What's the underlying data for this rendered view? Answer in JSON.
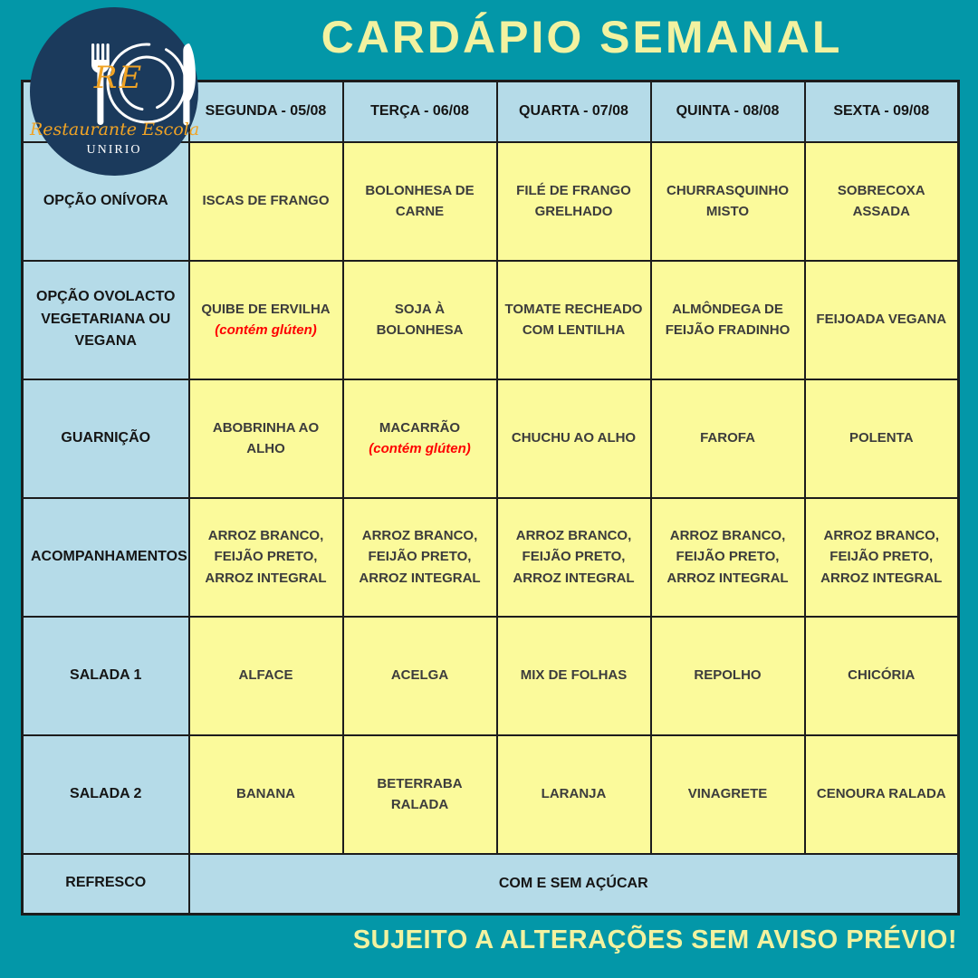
{
  "title": "CARDÁPIO SEMANAL",
  "footer_note": "SUJEITO A ALTERAÇÕES SEM AVISO PRÉVIO!",
  "logo": {
    "monogram": "RE",
    "name": "Restaurante Escola",
    "institution": "UNIRIO"
  },
  "colors": {
    "background_teal": "#0397a8",
    "header_cell_blue": "#b5dbe8",
    "dish_cell_yellow": "#fbfa9b",
    "accent_pale_yellow": "#f2f2a0",
    "logo_navy": "#1b3a5c",
    "logo_orange": "#f0a325",
    "allergen_red": "#fe0000",
    "grid_border": "#1c1c1c"
  },
  "table": {
    "column_headers": [
      "SEGUNDA - 05/08",
      "TERÇA - 06/08",
      "QUARTA - 07/08",
      "QUINTA - 08/08",
      "SEXTA - 09/08"
    ],
    "rows": [
      {
        "label": "OPÇÃO ONÍVORA",
        "cells": [
          {
            "text": "ISCAS DE FRANGO"
          },
          {
            "text": "BOLONHESA DE CARNE"
          },
          {
            "text": "FILÉ DE FRANGO GRELHADO"
          },
          {
            "text": "CHURRASQUINHO MISTO"
          },
          {
            "text": "SOBRECOXA ASSADA"
          }
        ]
      },
      {
        "label": "OPÇÃO OVOLACTO VEGETARIANA OU VEGANA",
        "cells": [
          {
            "text": "QUIBE DE ERVILHA",
            "note": "(contém glúten)"
          },
          {
            "text": "SOJA À BOLONHESA"
          },
          {
            "text": "TOMATE RECHEADO COM LENTILHA"
          },
          {
            "text": "ALMÔNDEGA DE FEIJÃO FRADINHO"
          },
          {
            "text": "FEIJOADA VEGANA"
          }
        ]
      },
      {
        "label": "GUARNIÇÃO",
        "cells": [
          {
            "text": "ABOBRINHA AO ALHO"
          },
          {
            "text": "MACARRÃO",
            "note": "(contém glúten)"
          },
          {
            "text": "CHUCHU AO ALHO"
          },
          {
            "text": "FAROFA"
          },
          {
            "text": "POLENTA"
          }
        ]
      },
      {
        "label": "ACOMPANHAMENTOS",
        "cells": [
          {
            "text": "ARROZ BRANCO, FEIJÃO PRETO, ARROZ INTEGRAL"
          },
          {
            "text": "ARROZ BRANCO, FEIJÃO PRETO, ARROZ INTEGRAL"
          },
          {
            "text": "ARROZ BRANCO, FEIJÃO PRETO, ARROZ INTEGRAL"
          },
          {
            "text": "ARROZ BRANCO, FEIJÃO PRETO, ARROZ INTEGRAL"
          },
          {
            "text": "ARROZ BRANCO, FEIJÃO PRETO, ARROZ INTEGRAL"
          }
        ]
      },
      {
        "label": "SALADA 1",
        "cells": [
          {
            "text": "ALFACE"
          },
          {
            "text": "ACELGA"
          },
          {
            "text": "MIX DE FOLHAS"
          },
          {
            "text": "REPOLHO"
          },
          {
            "text": "CHICÓRIA"
          }
        ]
      },
      {
        "label": "SALADA 2",
        "cells": [
          {
            "text": "BANANA"
          },
          {
            "text": "BETERRABA RALADA"
          },
          {
            "text": "LARANJA"
          },
          {
            "text": "VINAGRETE"
          },
          {
            "text": "CENOURA RALADA"
          }
        ]
      }
    ],
    "merged_row": {
      "label": "REFRESCO",
      "value": "COM E SEM AÇÚCAR"
    }
  }
}
